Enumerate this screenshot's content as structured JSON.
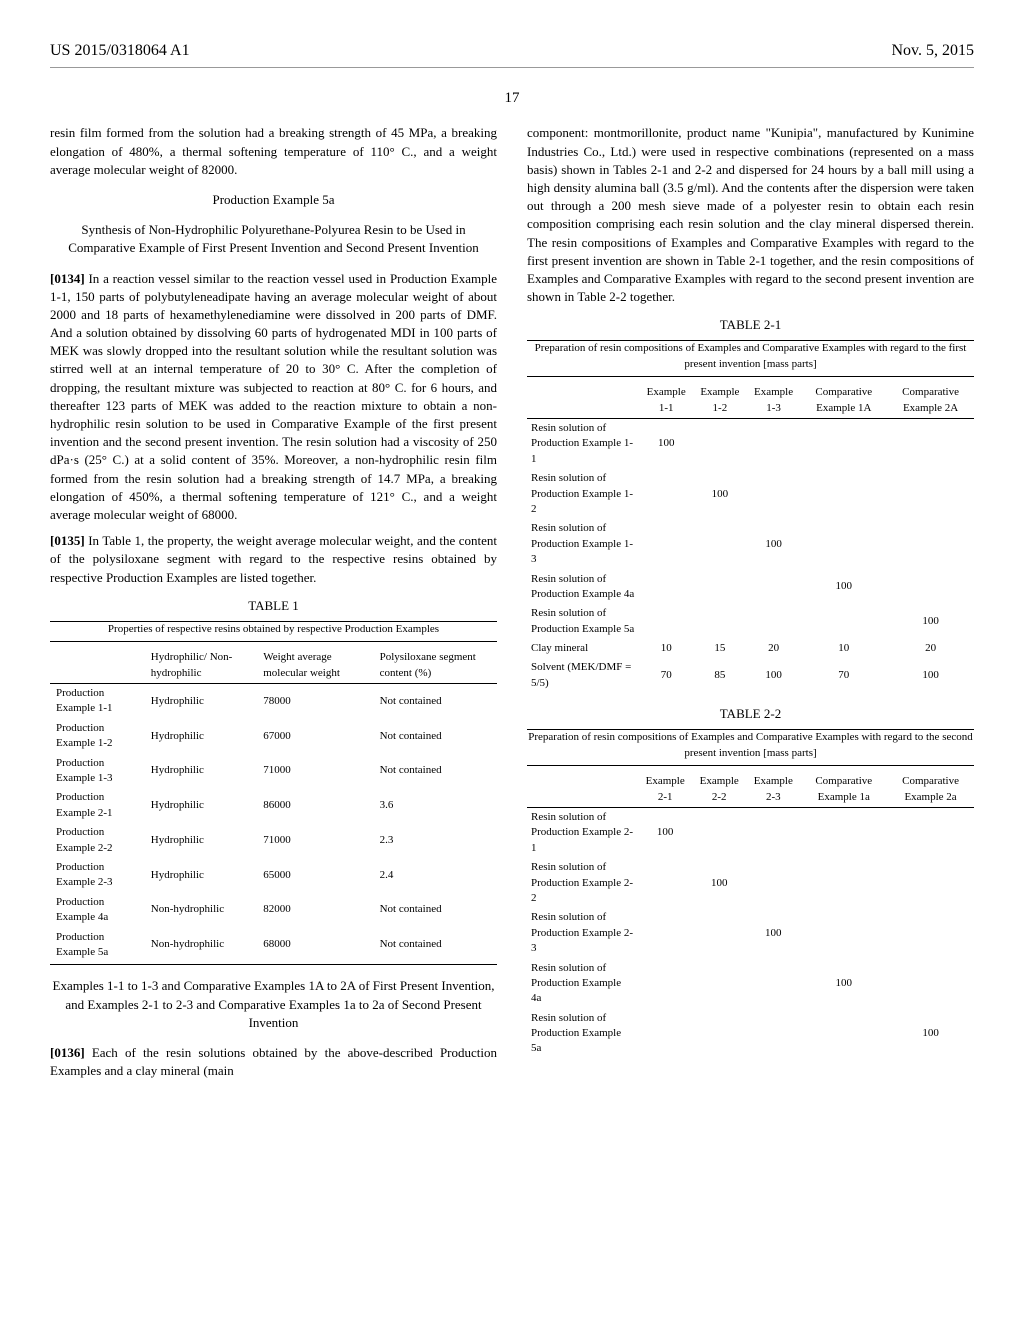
{
  "header": {
    "pub_number": "US 2015/0318064 A1",
    "pub_date": "Nov. 5, 2015"
  },
  "page_number": "17",
  "left_column": {
    "intro_para": "resin film formed from the solution had a breaking strength of 45 MPa, a breaking elongation of 480%, a thermal softening temperature of 110° C., and a weight average molecular weight of 82000.",
    "prod_example_5a_title": "Production Example 5a",
    "prod_example_5a_subtitle": "Synthesis of Non-Hydrophilic Polyurethane-Polyurea Resin to be Used in Comparative Example of First Present Invention and Second Present Invention",
    "para_0134_num": "[0134]",
    "para_0134": "In a reaction vessel similar to the reaction vessel used in Production Example 1-1, 150 parts of polybutyleneadipate having an average molecular weight of about 2000 and 18 parts of hexamethylenediamine were dissolved in 200 parts of DMF. And a solution obtained by dissolving 60 parts of hydrogenated MDI in 100 parts of MEK was slowly dropped into the resultant solution while the resultant solution was stirred well at an internal temperature of 20 to 30° C. After the completion of dropping, the resultant mixture was subjected to reaction at 80° C. for 6 hours, and thereafter 123 parts of MEK was added to the reaction mixture to obtain a non-hydrophilic resin solution to be used in Comparative Example of the first present invention and the second present invention. The resin solution had a viscosity of 250 dPa·s (25° C.) at a solid content of 35%. Moreover, a non-hydrophilic resin film formed from the resin solution had a breaking strength of 14.7 MPa, a breaking elongation of 450%, a thermal softening temperature of 121° C., and a weight average molecular weight of 68000.",
    "para_0135_num": "[0135]",
    "para_0135": "In Table 1, the property, the weight average molecular weight, and the content of the polysiloxane segment with regard to the respective resins obtained by respective Production Examples are listed together.",
    "table1_label": "TABLE 1",
    "table1_caption": "Properties of respective resins obtained by respective Production Examples",
    "table1_headers": {
      "col2": "Hydrophilic/ Non-hydrophilic",
      "col3": "Weight average molecular weight",
      "col4": "Polysiloxane segment content (%)"
    },
    "table1_rows": [
      {
        "c1": "Production Example 1-1",
        "c2": "Hydrophilic",
        "c3": "78000",
        "c4": "Not contained"
      },
      {
        "c1": "Production Example 1-2",
        "c2": "Hydrophilic",
        "c3": "67000",
        "c4": "Not contained"
      },
      {
        "c1": "Production Example 1-3",
        "c2": "Hydrophilic",
        "c3": "71000",
        "c4": "Not contained"
      },
      {
        "c1": "Production Example 2-1",
        "c2": "Hydrophilic",
        "c3": "86000",
        "c4": "3.6"
      },
      {
        "c1": "Production Example 2-2",
        "c2": "Hydrophilic",
        "c3": "71000",
        "c4": "2.3"
      },
      {
        "c1": "Production Example 2-3",
        "c2": "Hydrophilic",
        "c3": "65000",
        "c4": "2.4"
      },
      {
        "c1": "Production Example 4a",
        "c2": "Non-hydrophilic",
        "c3": "82000",
        "c4": "Not contained"
      },
      {
        "c1": "Production Example 5a",
        "c2": "Non-hydrophilic",
        "c3": "68000",
        "c4": "Not contained"
      }
    ],
    "examples_title": "Examples 1-1 to 1-3 and Comparative Examples 1A to 2A of First Present Invention, and Examples 2-1 to 2-3 and Comparative Examples 1a to 2a of Second Present Invention",
    "para_0136_num": "[0136]",
    "para_0136": "Each of the resin solutions obtained by the above-described Production Examples and a clay mineral (main"
  },
  "right_column": {
    "intro_para": "component: montmorillonite, product name \"Kunipia\", manufactured by Kunimine Industries Co., Ltd.) were used in respective combinations (represented on a mass basis) shown in Tables 2-1 and 2-2 and dispersed for 24 hours by a ball mill using a high density alumina ball (3.5 g/ml). And the contents after the dispersion were taken out through a 200 mesh sieve made of a polyester resin to obtain each resin composition comprising each resin solution and the clay mineral dispersed therein. The resin compositions of Examples and Comparative Examples with regard to the first present invention are shown in Table 2-1 together, and the resin compositions of Examples and Comparative Examples with regard to the second present invention are shown in Table 2-2 together.",
    "table21_label": "TABLE 2-1",
    "table21_caption": "Preparation of resin compositions of Examples and Comparative Examples with regard to the first present invention [mass parts]",
    "table21_headers": {
      "h1": "Example 1-1",
      "h2": "Example 1-2",
      "h3": "Example 1-3",
      "h4": "Comparative Example 1A",
      "h5": "Comparative Example 2A"
    },
    "table21_rows": [
      {
        "label": "Resin solution of Production Example 1-1",
        "v1": "100",
        "v2": "",
        "v3": "",
        "v4": "",
        "v5": ""
      },
      {
        "label": "Resin solution of Production Example 1-2",
        "v1": "",
        "v2": "100",
        "v3": "",
        "v4": "",
        "v5": ""
      },
      {
        "label": "Resin solution of Production Example 1-3",
        "v1": "",
        "v2": "",
        "v3": "100",
        "v4": "",
        "v5": ""
      },
      {
        "label": "Resin solution of Production Example 4a",
        "v1": "",
        "v2": "",
        "v3": "",
        "v4": "100",
        "v5": ""
      },
      {
        "label": "Resin solution of Production Example 5a",
        "v1": "",
        "v2": "",
        "v3": "",
        "v4": "",
        "v5": "100"
      },
      {
        "label": "Clay mineral",
        "v1": "10",
        "v2": "15",
        "v3": "20",
        "v4": "10",
        "v5": "20"
      },
      {
        "label": "Solvent (MEK/DMF = 5/5)",
        "v1": "70",
        "v2": "85",
        "v3": "100",
        "v4": "70",
        "v5": "100"
      }
    ],
    "table22_label": "TABLE 2-2",
    "table22_caption": "Preparation of resin compositions of Examples and Comparative Examples with regard to the second present invention [mass parts]",
    "table22_headers": {
      "h1": "Example 2-1",
      "h2": "Example 2-2",
      "h3": "Example 2-3",
      "h4": "Comparative Example 1a",
      "h5": "Comparative Example 2a"
    },
    "table22_rows": [
      {
        "label": "Resin solution of Production Example 2-1",
        "v1": "100",
        "v2": "",
        "v3": "",
        "v4": "",
        "v5": ""
      },
      {
        "label": "Resin solution of Production Example 2-2",
        "v1": "",
        "v2": "100",
        "v3": "",
        "v4": "",
        "v5": ""
      },
      {
        "label": "Resin solution of Production Example 2-3",
        "v1": "",
        "v2": "",
        "v3": "100",
        "v4": "",
        "v5": ""
      },
      {
        "label": "Resin solution of Production Example 4a",
        "v1": "",
        "v2": "",
        "v3": "",
        "v4": "100",
        "v5": ""
      },
      {
        "label": "Resin solution of Production Example 5a",
        "v1": "",
        "v2": "",
        "v3": "",
        "v4": "",
        "v5": "100"
      }
    ]
  }
}
